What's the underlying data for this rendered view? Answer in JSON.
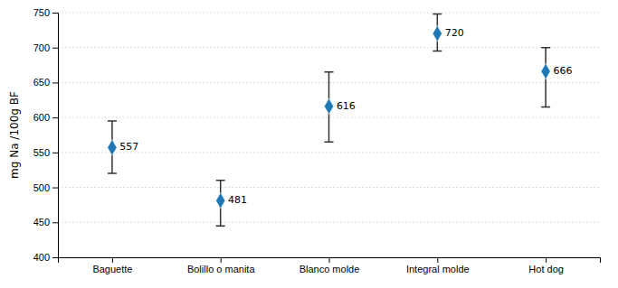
{
  "chart_data": {
    "type": "errorbar",
    "categories": [
      "Baguette",
      "Bolillo o manita",
      "Blanco molde",
      "Integral molde",
      "Hot dog"
    ],
    "values": [
      557,
      481,
      616,
      720,
      666
    ],
    "yerr_upper": [
      38,
      29,
      49,
      28,
      34
    ],
    "yerr_lower": [
      37,
      36,
      51,
      25,
      51
    ],
    "data_labels": true,
    "marker": "diamond",
    "ylabel": "mg Na /100g BF",
    "ylim": [
      400,
      750
    ],
    "yticks": [
      400,
      450,
      500,
      550,
      600,
      650,
      700,
      750
    ],
    "grid": true
  }
}
